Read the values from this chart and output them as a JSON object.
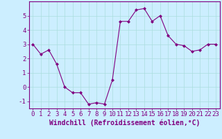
{
  "x": [
    0,
    1,
    2,
    3,
    4,
    5,
    6,
    7,
    8,
    9,
    10,
    11,
    12,
    13,
    14,
    15,
    16,
    17,
    18,
    19,
    20,
    21,
    22,
    23
  ],
  "y": [
    3.0,
    2.3,
    2.6,
    1.6,
    0.0,
    -0.4,
    -0.4,
    -1.2,
    -1.1,
    -1.2,
    0.5,
    4.6,
    4.6,
    5.4,
    5.5,
    4.6,
    5.0,
    3.6,
    3.0,
    2.9,
    2.5,
    2.6,
    3.0,
    3.0
  ],
  "line_color": "#800080",
  "marker": "D",
  "marker_size": 2,
  "line_width": 0.8,
  "bg_color": "#cceeff",
  "grid_color": "#aadddd",
  "xlabel": "Windchill (Refroidissement éolien,°C)",
  "xlabel_color": "#800080",
  "tick_color": "#800080",
  "spine_color": "#800080",
  "ylim": [
    -1.5,
    6.0
  ],
  "xlim": [
    -0.5,
    23.5
  ],
  "yticks": [
    -1,
    0,
    1,
    2,
    3,
    4,
    5
  ],
  "xticks": [
    0,
    1,
    2,
    3,
    4,
    5,
    6,
    7,
    8,
    9,
    10,
    11,
    12,
    13,
    14,
    15,
    16,
    17,
    18,
    19,
    20,
    21,
    22,
    23
  ],
  "font_size": 6.5,
  "label_font_size": 7
}
